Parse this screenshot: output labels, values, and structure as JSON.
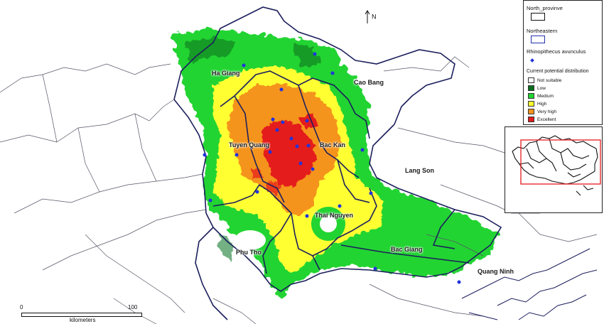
{
  "legend": {
    "north_province": "North_provinve",
    "northeastern": "Northeastern",
    "species": "Rhinopithecus avunculus",
    "distribution_title": "Current potential distribution",
    "classes": [
      {
        "label": "Not suitable",
        "color": "#ffffff"
      },
      {
        "label": "Low",
        "color": "#0a6e1e"
      },
      {
        "label": "Medium",
        "color": "#22d431"
      },
      {
        "label": "High",
        "color": "#ffff33"
      },
      {
        "label": "Very high",
        "color": "#f5941e"
      },
      {
        "label": "Excellent",
        "color": "#e41a1c"
      }
    ]
  },
  "provinces": {
    "ha_giang": "Ha Giang",
    "cao_bang": "Cao Bang",
    "tuyen_quang": "Tuyen Quang",
    "bac_kan": "Bac Kan",
    "lang_son": "Lang Son",
    "thai_nguyen": "Thai Nguyen",
    "phu_tho": "Phu Tho",
    "bac_giang": "Bac Giang",
    "quang_ninh": "Quang Ninh"
  },
  "north_arrow": "N",
  "scale": {
    "start": "0",
    "end": "100",
    "unit": "kilometers"
  }
}
